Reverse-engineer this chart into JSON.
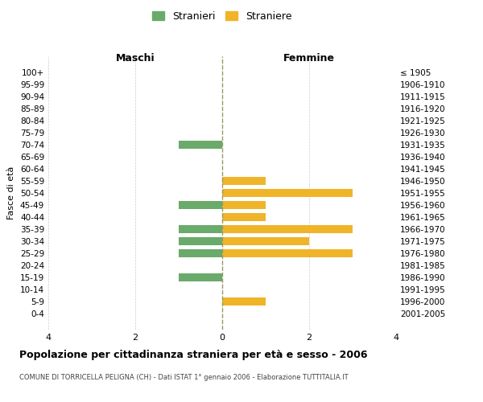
{
  "age_groups": [
    "100+",
    "95-99",
    "90-94",
    "85-89",
    "80-84",
    "75-79",
    "70-74",
    "65-69",
    "60-64",
    "55-59",
    "50-54",
    "45-49",
    "40-44",
    "35-39",
    "30-34",
    "25-29",
    "20-24",
    "15-19",
    "10-14",
    "5-9",
    "0-4"
  ],
  "birth_years": [
    "≤ 1905",
    "1906-1910",
    "1911-1915",
    "1916-1920",
    "1921-1925",
    "1926-1930",
    "1931-1935",
    "1936-1940",
    "1941-1945",
    "1946-1950",
    "1951-1955",
    "1956-1960",
    "1961-1965",
    "1966-1970",
    "1971-1975",
    "1976-1980",
    "1981-1985",
    "1986-1990",
    "1991-1995",
    "1996-2000",
    "2001-2005"
  ],
  "males": [
    0,
    0,
    0,
    0,
    0,
    0,
    1,
    0,
    0,
    0,
    0,
    1,
    0,
    1,
    1,
    1,
    0,
    1,
    0,
    0,
    0
  ],
  "females": [
    0,
    0,
    0,
    0,
    0,
    0,
    0,
    0,
    0,
    1,
    3,
    1,
    1,
    3,
    2,
    3,
    0,
    0,
    0,
    1,
    0
  ],
  "male_color": "#6aaa6a",
  "female_color": "#f0b429",
  "xlabel_left": "Maschi",
  "xlabel_right": "Femmine",
  "ylabel_left": "Fasce di età",
  "title": "Popolazione per cittadinanza straniera per età e sesso - 2006",
  "subtitle": "COMUNE DI TORRICELLA PELIGNA (CH) - Dati ISTAT 1° gennaio 2006 - Elaborazione TUTTITALIA.IT",
  "legend_male": "Stranieri",
  "legend_female": "Straniere",
  "xlim": 4,
  "bg_color": "#ffffff",
  "grid_color": "#cccccc",
  "center_line_color": "#999966"
}
